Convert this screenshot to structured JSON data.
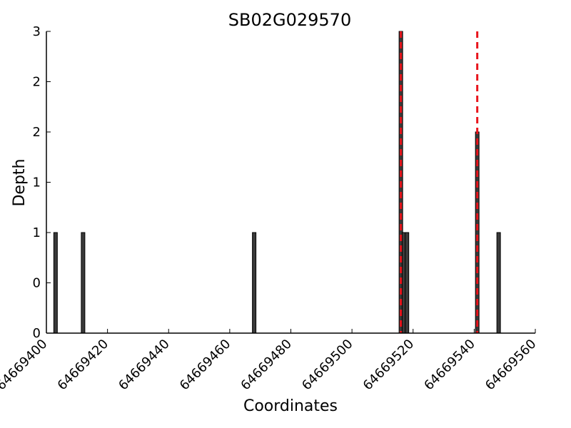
{
  "chart_data": {
    "type": "bar",
    "title": "SB02G029570",
    "xlabel": "Coordinates",
    "ylabel": "Depth",
    "xlim": [
      64669400,
      64669560
    ],
    "ylim": [
      0,
      3
    ],
    "x_ticks": [
      64669400,
      64669420,
      64669440,
      64669460,
      64669480,
      64669500,
      64669520,
      64669540,
      64669560
    ],
    "x_tick_labels": [
      "64669400",
      "64669420",
      "64669440",
      "64669460",
      "64669480",
      "64669500",
      "64669520",
      "64669540",
      "64669560"
    ],
    "y_ticks": [
      0,
      0.5,
      1,
      1.5,
      2,
      2.5,
      3
    ],
    "y_tick_labels": [
      "0",
      "0",
      "1",
      "1",
      "2",
      "2",
      "3"
    ],
    "bars": [
      {
        "x": 64669403,
        "value": 1
      },
      {
        "x": 64669412,
        "value": 1
      },
      {
        "x": 64669468,
        "value": 1
      },
      {
        "x": 64669516,
        "value": 3
      },
      {
        "x": 64669517,
        "value": 1
      },
      {
        "x": 64669518,
        "value": 1
      },
      {
        "x": 64669541,
        "value": 2
      },
      {
        "x": 64669548,
        "value": 1
      }
    ],
    "bar_color": "#3a3a3a",
    "vlines": [
      {
        "x": 64669516,
        "color": "#e8141c",
        "style": "dashed"
      },
      {
        "x": 64669541,
        "color": "#e8141c",
        "style": "dashed"
      }
    ],
    "grid": false
  }
}
